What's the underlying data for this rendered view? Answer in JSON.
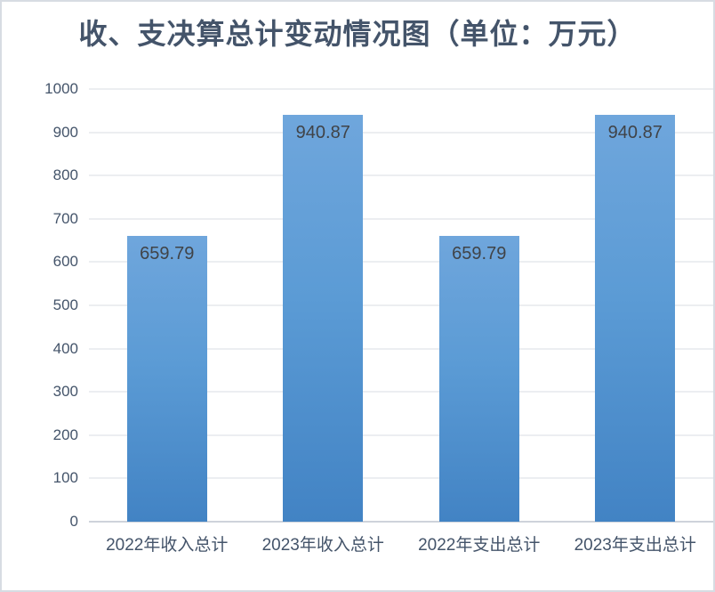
{
  "window": {
    "background": "#ffffff",
    "border_color": "#d7dce3"
  },
  "chart_data": {
    "type": "bar",
    "title": "收、支决算总计变动情况图（单位：万元）",
    "unit": "万元",
    "categories": [
      "2022年收入总计",
      "2023年收入总计",
      "2022年支出总计",
      "2023年支出总计"
    ],
    "values": [
      659.79,
      940.87,
      659.79,
      940.87
    ],
    "value_labels": [
      "659.79",
      "940.87",
      "659.79",
      "940.87"
    ],
    "xlabel": "",
    "ylabel": "",
    "ylim": [
      0,
      1000
    ],
    "yticks": [
      0,
      100,
      200,
      300,
      400,
      500,
      600,
      700,
      800,
      900,
      1000
    ],
    "grid": true,
    "legend_position": "none",
    "colors": {
      "bar_top": "#6fa6dc",
      "bar_mid": "#5b9bd5",
      "bar_bottom": "#4283c4",
      "gridline": "#dadde3",
      "axis_line": "#ced3db",
      "title_text": "#44546a",
      "tick_label_text": "#44546a",
      "data_label_text": "#404347"
    }
  }
}
